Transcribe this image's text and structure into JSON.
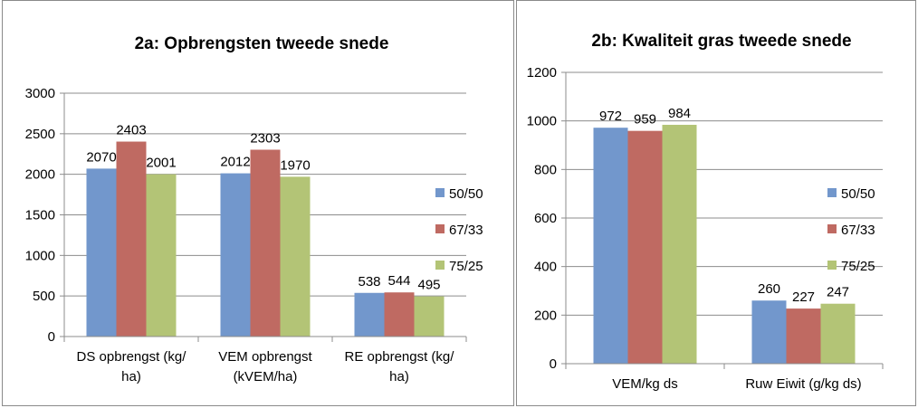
{
  "colors": {
    "series": [
      "#7297cc",
      "#bf6a62",
      "#b3c476"
    ],
    "grid": "#8c8c8c",
    "axis": "#8c8c8c"
  },
  "chart_data": [
    {
      "type": "bar",
      "title": "2a: Opbrengsten tweede snede",
      "categories": [
        [
          "DS opbrengst (kg/",
          "ha)"
        ],
        [
          "VEM opbrengst",
          "(kVEM/ha)"
        ],
        [
          "RE opbrengst (kg/",
          "ha)"
        ]
      ],
      "series": [
        {
          "name": "50/50",
          "values": [
            2070,
            2012,
            538
          ]
        },
        {
          "name": "67/33",
          "values": [
            2403,
            2303,
            544
          ]
        },
        {
          "name": "75/25",
          "values": [
            2001,
            1970,
            495
          ]
        }
      ],
      "ylim": [
        0,
        3000
      ],
      "yticks": [
        0,
        500,
        1000,
        1500,
        2000,
        2500,
        3000
      ],
      "grid": true,
      "legend": "right"
    },
    {
      "type": "bar",
      "title": "2b: Kwaliteit gras  tweede snede",
      "categories": [
        [
          "VEM/kg ds"
        ],
        [
          "Ruw Eiwit (g/kg ds)"
        ]
      ],
      "series": [
        {
          "name": "50/50",
          "values": [
            972,
            260
          ]
        },
        {
          "name": "67/33",
          "values": [
            959,
            227
          ]
        },
        {
          "name": "75/25",
          "values": [
            984,
            247
          ]
        }
      ],
      "ylim": [
        0,
        1200
      ],
      "yticks": [
        0,
        200,
        400,
        600,
        800,
        1000,
        1200
      ],
      "grid": true,
      "legend": "right"
    }
  ]
}
